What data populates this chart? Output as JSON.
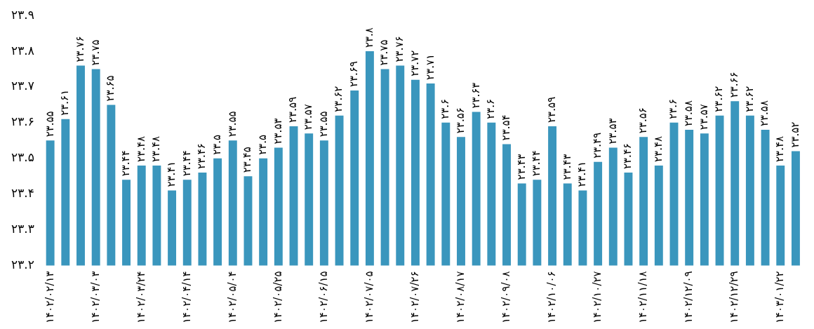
{
  "chart_data": {
    "type": "bar",
    "categories": [
      "۱۴۰۲/۰۲/۱۳",
      null,
      null,
      "۱۴۰۲/۰۳/۰۳",
      null,
      null,
      "۱۴۰۲/۰۳/۲۴",
      null,
      null,
      "۱۴۰۲/۰۴/۱۴",
      null,
      null,
      "۱۴۰۲/۰۵/۰۴",
      null,
      null,
      "۱۴۰۲/۰۵/۲۵",
      null,
      null,
      "۱۴۰۲/۰۶/۱۵",
      null,
      null,
      "۱۴۰۲/۰۷/۰۵",
      null,
      null,
      "۱۴۰۲/۰۷/۲۶",
      null,
      null,
      "۱۴۰۲/۰۸/۱۷",
      null,
      null,
      "۱۴۰۲/۰۹/۰۸",
      null,
      null,
      "۱۴۰۲/۱۰/۰۶",
      null,
      null,
      "۱۴۰۲/۱۰/۲۷",
      null,
      null,
      "۱۴۰۲/۱۱/۱۸",
      null,
      null,
      "۱۴۰۲/۱۲/۰۹",
      null,
      null,
      "۱۴۰۲/۱۲/۲۹",
      null,
      null,
      "۱۴۰۳/۰۱/۲۲",
      null
    ],
    "values": [
      23.55,
      23.61,
      23.76,
      23.75,
      23.65,
      23.44,
      23.48,
      23.48,
      23.41,
      23.44,
      23.46,
      23.5,
      23.55,
      23.45,
      23.5,
      23.53,
      23.59,
      23.57,
      23.55,
      23.62,
      23.69,
      23.8,
      23.75,
      23.76,
      23.72,
      23.71,
      23.6,
      23.56,
      23.63,
      23.6,
      23.54,
      23.43,
      23.44,
      23.59,
      23.43,
      23.41,
      23.49,
      23.53,
      23.46,
      23.56,
      23.48,
      23.6,
      23.58,
      23.57,
      23.62,
      23.66,
      23.62,
      23.58,
      23.48,
      23.52
    ],
    "value_labels": [
      "۲۳.۵۵",
      "۲۳.۶۱",
      "۲۳.۷۶",
      "۲۳.۷۵",
      "۲۳.۶۵",
      "۲۳.۴۴",
      "۲۳.۴۸",
      "۲۳.۴۸",
      "۲۳.۴۱",
      "۲۳.۴۴",
      "۲۳.۴۶",
      "۲۳.۵",
      "۲۳.۵۵",
      "۲۳.۴۵",
      "۲۳.۵",
      "۲۳.۵۳",
      "۲۳.۵۹",
      "۲۳.۵۷",
      "۲۳.۵۵",
      "۲۳.۶۲",
      "۲۳.۶۹",
      "۲۳.۸",
      "۲۳.۷۵",
      "۲۳.۷۶",
      "۲۳.۷۲",
      "۲۳.۷۱",
      "۲۳.۶",
      "۲۳.۵۶",
      "۲۳.۶۳",
      "۲۳.۶",
      "۲۳.۵۴",
      "۲۳.۴۳",
      "۲۳.۴۴",
      "۲۳.۵۹",
      "۲۳.۴۳",
      "۲۳.۴۱",
      "۲۳.۴۹",
      "۲۳.۵۳",
      "۲۳.۴۶",
      "۲۳.۵۶",
      "۲۳.۴۸",
      "۲۳.۶",
      "۲۳.۵۸",
      "۲۳.۵۷",
      "۲۳.۶۲",
      "۲۳.۶۶",
      "۲۳.۶۲",
      "۲۳.۵۸",
      "۲۳.۴۸",
      "۲۳.۵۲"
    ],
    "color": "#3a96bd",
    "ylim": [
      23.2,
      23.9
    ],
    "yticks": [
      {
        "value": 23.2,
        "label": "۲۳.۲"
      },
      {
        "value": 23.3,
        "label": "۲۳.۳"
      },
      {
        "value": 23.4,
        "label": "۲۳.۴"
      },
      {
        "value": 23.5,
        "label": "۲۳.۵"
      },
      {
        "value": 23.6,
        "label": "۲۳.۶"
      },
      {
        "value": 23.7,
        "label": "۲۳.۷"
      },
      {
        "value": 23.8,
        "label": "۲۳.۸"
      },
      {
        "value": 23.9,
        "label": "۲۳.۹"
      }
    ],
    "grid": false,
    "legend": false
  }
}
